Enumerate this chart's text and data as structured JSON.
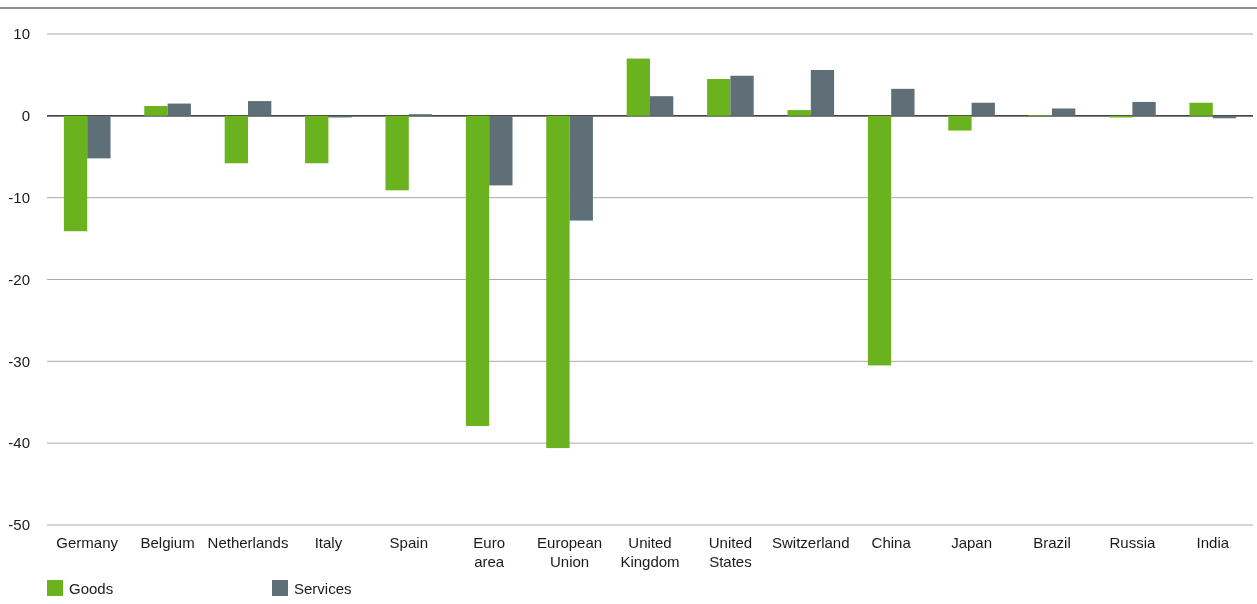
{
  "chart_data": {
    "type": "bar",
    "categories": [
      "Germany",
      "Belgium",
      "Netherlands",
      "Italy",
      "Spain",
      "Euro area",
      "European Union",
      "United Kingdom",
      "United States",
      "Switzerland",
      "China",
      "Japan",
      "Brazil",
      "Russia",
      "India"
    ],
    "series": [
      {
        "name": "Goods",
        "color": "#6ab31f",
        "values": [
          -14.1,
          1.2,
          -5.8,
          -5.8,
          -9.1,
          -37.9,
          -40.6,
          7.0,
          4.5,
          0.7,
          -30.5,
          -1.8,
          0.1,
          -0.2,
          1.6
        ]
      },
      {
        "name": "Services",
        "color": "#5e6f77",
        "values": [
          -5.2,
          1.5,
          1.8,
          -0.2,
          0.2,
          -8.5,
          -12.8,
          2.4,
          4.9,
          5.6,
          3.3,
          1.6,
          0.9,
          1.7,
          -0.3
        ]
      }
    ],
    "ylim": [
      -50,
      10
    ],
    "yticks": [
      -50,
      -40,
      -30,
      -20,
      -10,
      0,
      10
    ],
    "grid": "y",
    "legend": "bottom left"
  }
}
